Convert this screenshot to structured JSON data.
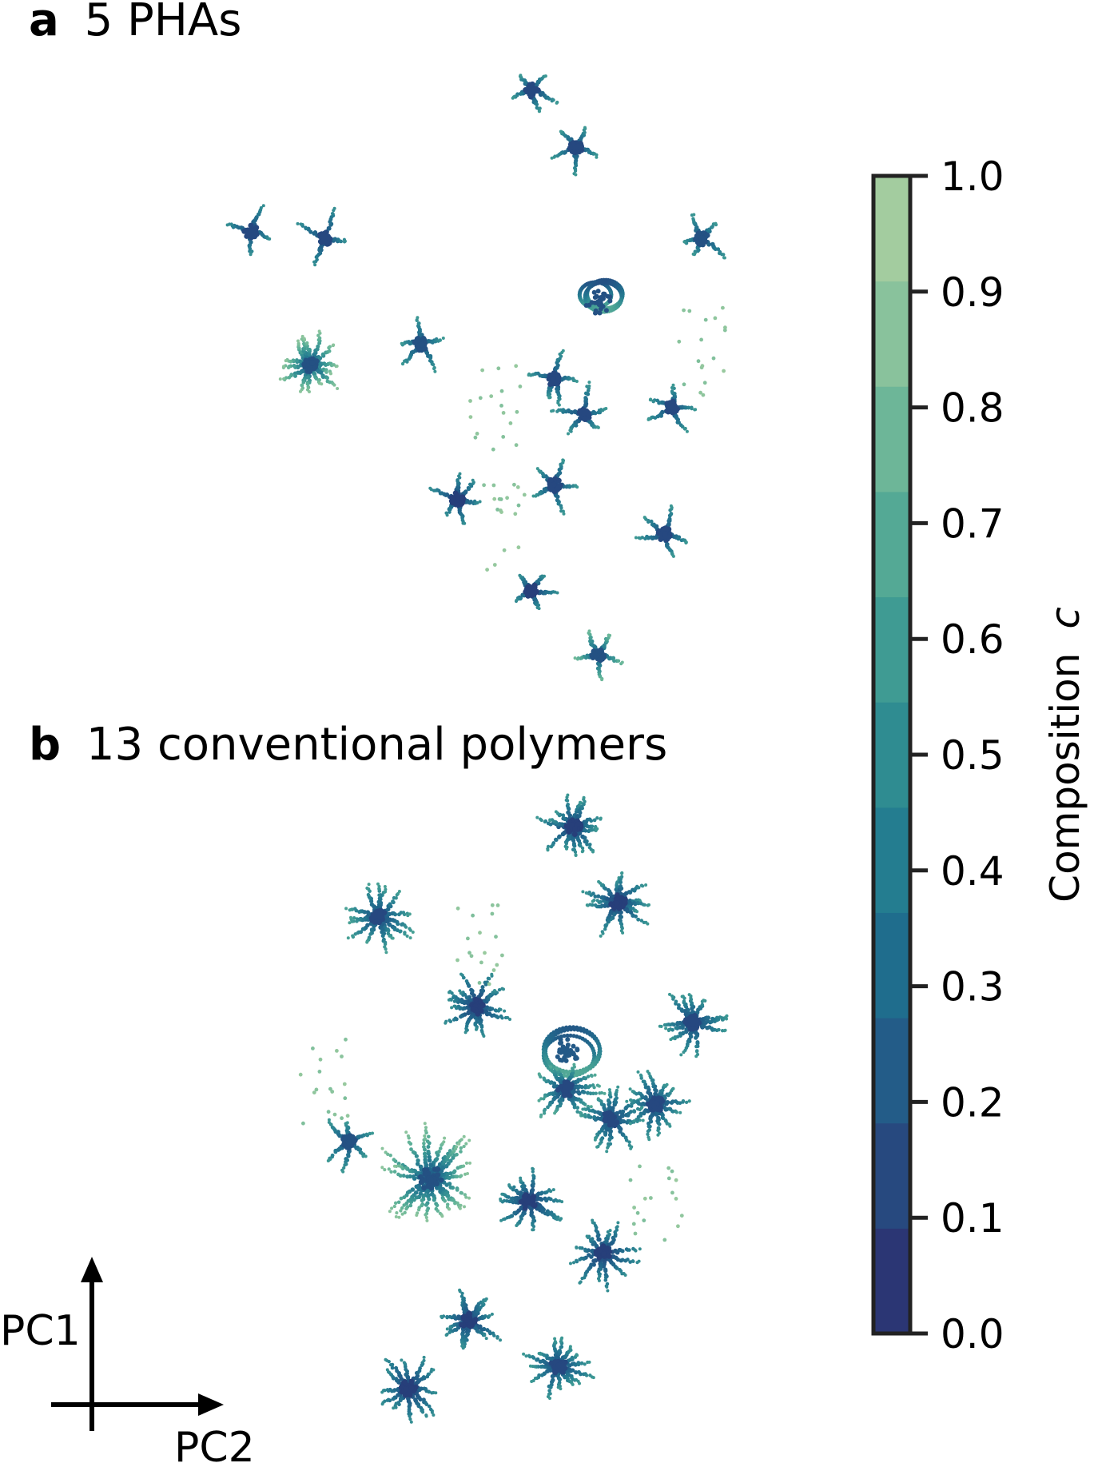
{
  "panels": [
    {
      "letter": "a",
      "title": "5 PHAs"
    },
    {
      "letter": "b",
      "title": "13 conventional polymers"
    }
  ],
  "axis_indicator": {
    "vertical_label": "PC1",
    "horizontal_label": "PC2"
  },
  "colorbar": {
    "label": "Composition",
    "label_symbol": "c",
    "range": [
      0.0,
      1.0
    ],
    "ticks": [
      "0.0",
      "0.1",
      "0.2",
      "0.3",
      "0.4",
      "0.5",
      "0.6",
      "0.7",
      "0.8",
      "0.9",
      "1.0"
    ],
    "band_colors": [
      "#2b3674",
      "#27497f",
      "#235c88",
      "#1f6d8d",
      "#247d90",
      "#2f8c91",
      "#3f9b93",
      "#54a995",
      "#6db698",
      "#89c29c",
      "#a3cc9f"
    ]
  },
  "chart_data": [
    {
      "type": "scatter",
      "title": "5 PHAs",
      "xlabel": "PC2",
      "ylabel": "PC1",
      "grid": false,
      "colorscale": "composition c, 0.0 to 1.0",
      "clusters": [
        {
          "x": 4.6,
          "y": 13.2,
          "shape": "star",
          "arms": 5,
          "c_core": 0.15,
          "c_tip": 0.6
        },
        {
          "x": 5.2,
          "y": 12.4,
          "shape": "star",
          "arms": 5,
          "c_core": 0.15,
          "c_tip": 0.6
        },
        {
          "x": 6.9,
          "y": 11.1,
          "shape": "star",
          "arms": 5,
          "c_core": 0.2,
          "c_tip": 0.6
        },
        {
          "x": 0.8,
          "y": 11.2,
          "shape": "star",
          "arms": 4,
          "c_core": 0.15,
          "c_tip": 0.55
        },
        {
          "x": 1.8,
          "y": 11.1,
          "shape": "star",
          "arms": 4,
          "c_core": 0.15,
          "c_tip": 0.55
        },
        {
          "x": 5.5,
          "y": 10.2,
          "shape": "ring",
          "arms": 0,
          "c_core": 0.2,
          "c_tip": 0.7
        },
        {
          "x": 1.6,
          "y": 9.3,
          "shape": "burst",
          "arms": 14,
          "c_core": 0.2,
          "c_tip": 0.9
        },
        {
          "x": 3.1,
          "y": 9.6,
          "shape": "star",
          "arms": 5,
          "c_core": 0.2,
          "c_tip": 0.6
        },
        {
          "x": 4.9,
          "y": 9.1,
          "shape": "star",
          "arms": 5,
          "c_core": 0.15,
          "c_tip": 0.6
        },
        {
          "x": 5.3,
          "y": 8.6,
          "shape": "star",
          "arms": 5,
          "c_core": 0.15,
          "c_tip": 0.6
        },
        {
          "x": 6.5,
          "y": 8.7,
          "shape": "star",
          "arms": 5,
          "c_core": 0.15,
          "c_tip": 0.6
        },
        {
          "x": 3.6,
          "y": 7.4,
          "shape": "star",
          "arms": 6,
          "c_core": 0.1,
          "c_tip": 0.55
        },
        {
          "x": 4.9,
          "y": 7.6,
          "shape": "star",
          "arms": 5,
          "c_core": 0.15,
          "c_tip": 0.6
        },
        {
          "x": 6.4,
          "y": 6.9,
          "shape": "star",
          "arms": 5,
          "c_core": 0.15,
          "c_tip": 0.6
        },
        {
          "x": 4.6,
          "y": 6.1,
          "shape": "star",
          "arms": 5,
          "c_core": 0.1,
          "c_tip": 0.55
        },
        {
          "x": 5.5,
          "y": 5.2,
          "shape": "star",
          "arms": 5,
          "c_core": 0.2,
          "c_tip": 0.8
        },
        {
          "x": 4.1,
          "y": 8.7,
          "shape": "scatter",
          "arms": 0,
          "c_core": 0.95,
          "c_tip": 0.95
        },
        {
          "x": 4.2,
          "y": 7.0,
          "shape": "scatter",
          "arms": 0,
          "c_core": 0.95,
          "c_tip": 0.95
        },
        {
          "x": 6.9,
          "y": 9.5,
          "shape": "scatter",
          "arms": 0,
          "c_core": 0.95,
          "c_tip": 0.95
        }
      ]
    },
    {
      "type": "scatter",
      "title": "13 conventional polymers",
      "xlabel": "PC2",
      "ylabel": "PC1",
      "grid": false,
      "colorscale": "composition c, 0.0 to 1.0",
      "clusters": [
        {
          "x": 5.2,
          "y": 13.0,
          "shape": "burst",
          "arms": 14,
          "c_core": 0.1,
          "c_tip": 0.6
        },
        {
          "x": 5.8,
          "y": 12.0,
          "shape": "burst",
          "arms": 14,
          "c_core": 0.1,
          "c_tip": 0.6
        },
        {
          "x": 2.6,
          "y": 11.8,
          "shape": "burst",
          "arms": 14,
          "c_core": 0.15,
          "c_tip": 0.65
        },
        {
          "x": 3.9,
          "y": 10.6,
          "shape": "burst",
          "arms": 14,
          "c_core": 0.1,
          "c_tip": 0.55
        },
        {
          "x": 6.8,
          "y": 10.4,
          "shape": "burst",
          "arms": 12,
          "c_core": 0.15,
          "c_tip": 0.6
        },
        {
          "x": 5.1,
          "y": 10.0,
          "shape": "ring",
          "arms": 0,
          "c_core": 0.25,
          "c_tip": 0.7
        },
        {
          "x": 5.1,
          "y": 9.5,
          "shape": "burst",
          "arms": 12,
          "c_core": 0.15,
          "c_tip": 0.7
        },
        {
          "x": 5.7,
          "y": 9.1,
          "shape": "burst",
          "arms": 12,
          "c_core": 0.15,
          "c_tip": 0.6
        },
        {
          "x": 6.3,
          "y": 9.3,
          "shape": "burst",
          "arms": 12,
          "c_core": 0.15,
          "c_tip": 0.6
        },
        {
          "x": 2.2,
          "y": 8.8,
          "shape": "star",
          "arms": 6,
          "c_core": 0.2,
          "c_tip": 0.6
        },
        {
          "x": 3.3,
          "y": 8.3,
          "shape": "burst",
          "arms": 22,
          "c_core": 0.2,
          "c_tip": 0.9
        },
        {
          "x": 4.6,
          "y": 8.0,
          "shape": "burst",
          "arms": 12,
          "c_core": 0.1,
          "c_tip": 0.55
        },
        {
          "x": 5.6,
          "y": 7.3,
          "shape": "burst",
          "arms": 12,
          "c_core": 0.1,
          "c_tip": 0.55
        },
        {
          "x": 3.8,
          "y": 6.4,
          "shape": "burst",
          "arms": 12,
          "c_core": 0.1,
          "c_tip": 0.55
        },
        {
          "x": 3.0,
          "y": 5.5,
          "shape": "burst",
          "arms": 12,
          "c_core": 0.1,
          "c_tip": 0.55
        },
        {
          "x": 5.0,
          "y": 5.8,
          "shape": "burst",
          "arms": 14,
          "c_core": 0.15,
          "c_tip": 0.6
        },
        {
          "x": 4.0,
          "y": 11.5,
          "shape": "scatter",
          "arms": 0,
          "c_core": 0.95,
          "c_tip": 0.95
        },
        {
          "x": 1.9,
          "y": 9.6,
          "shape": "scatter",
          "arms": 0,
          "c_core": 0.95,
          "c_tip": 0.95
        },
        {
          "x": 6.3,
          "y": 7.9,
          "shape": "scatter",
          "arms": 0,
          "c_core": 0.95,
          "c_tip": 0.95
        }
      ]
    }
  ]
}
